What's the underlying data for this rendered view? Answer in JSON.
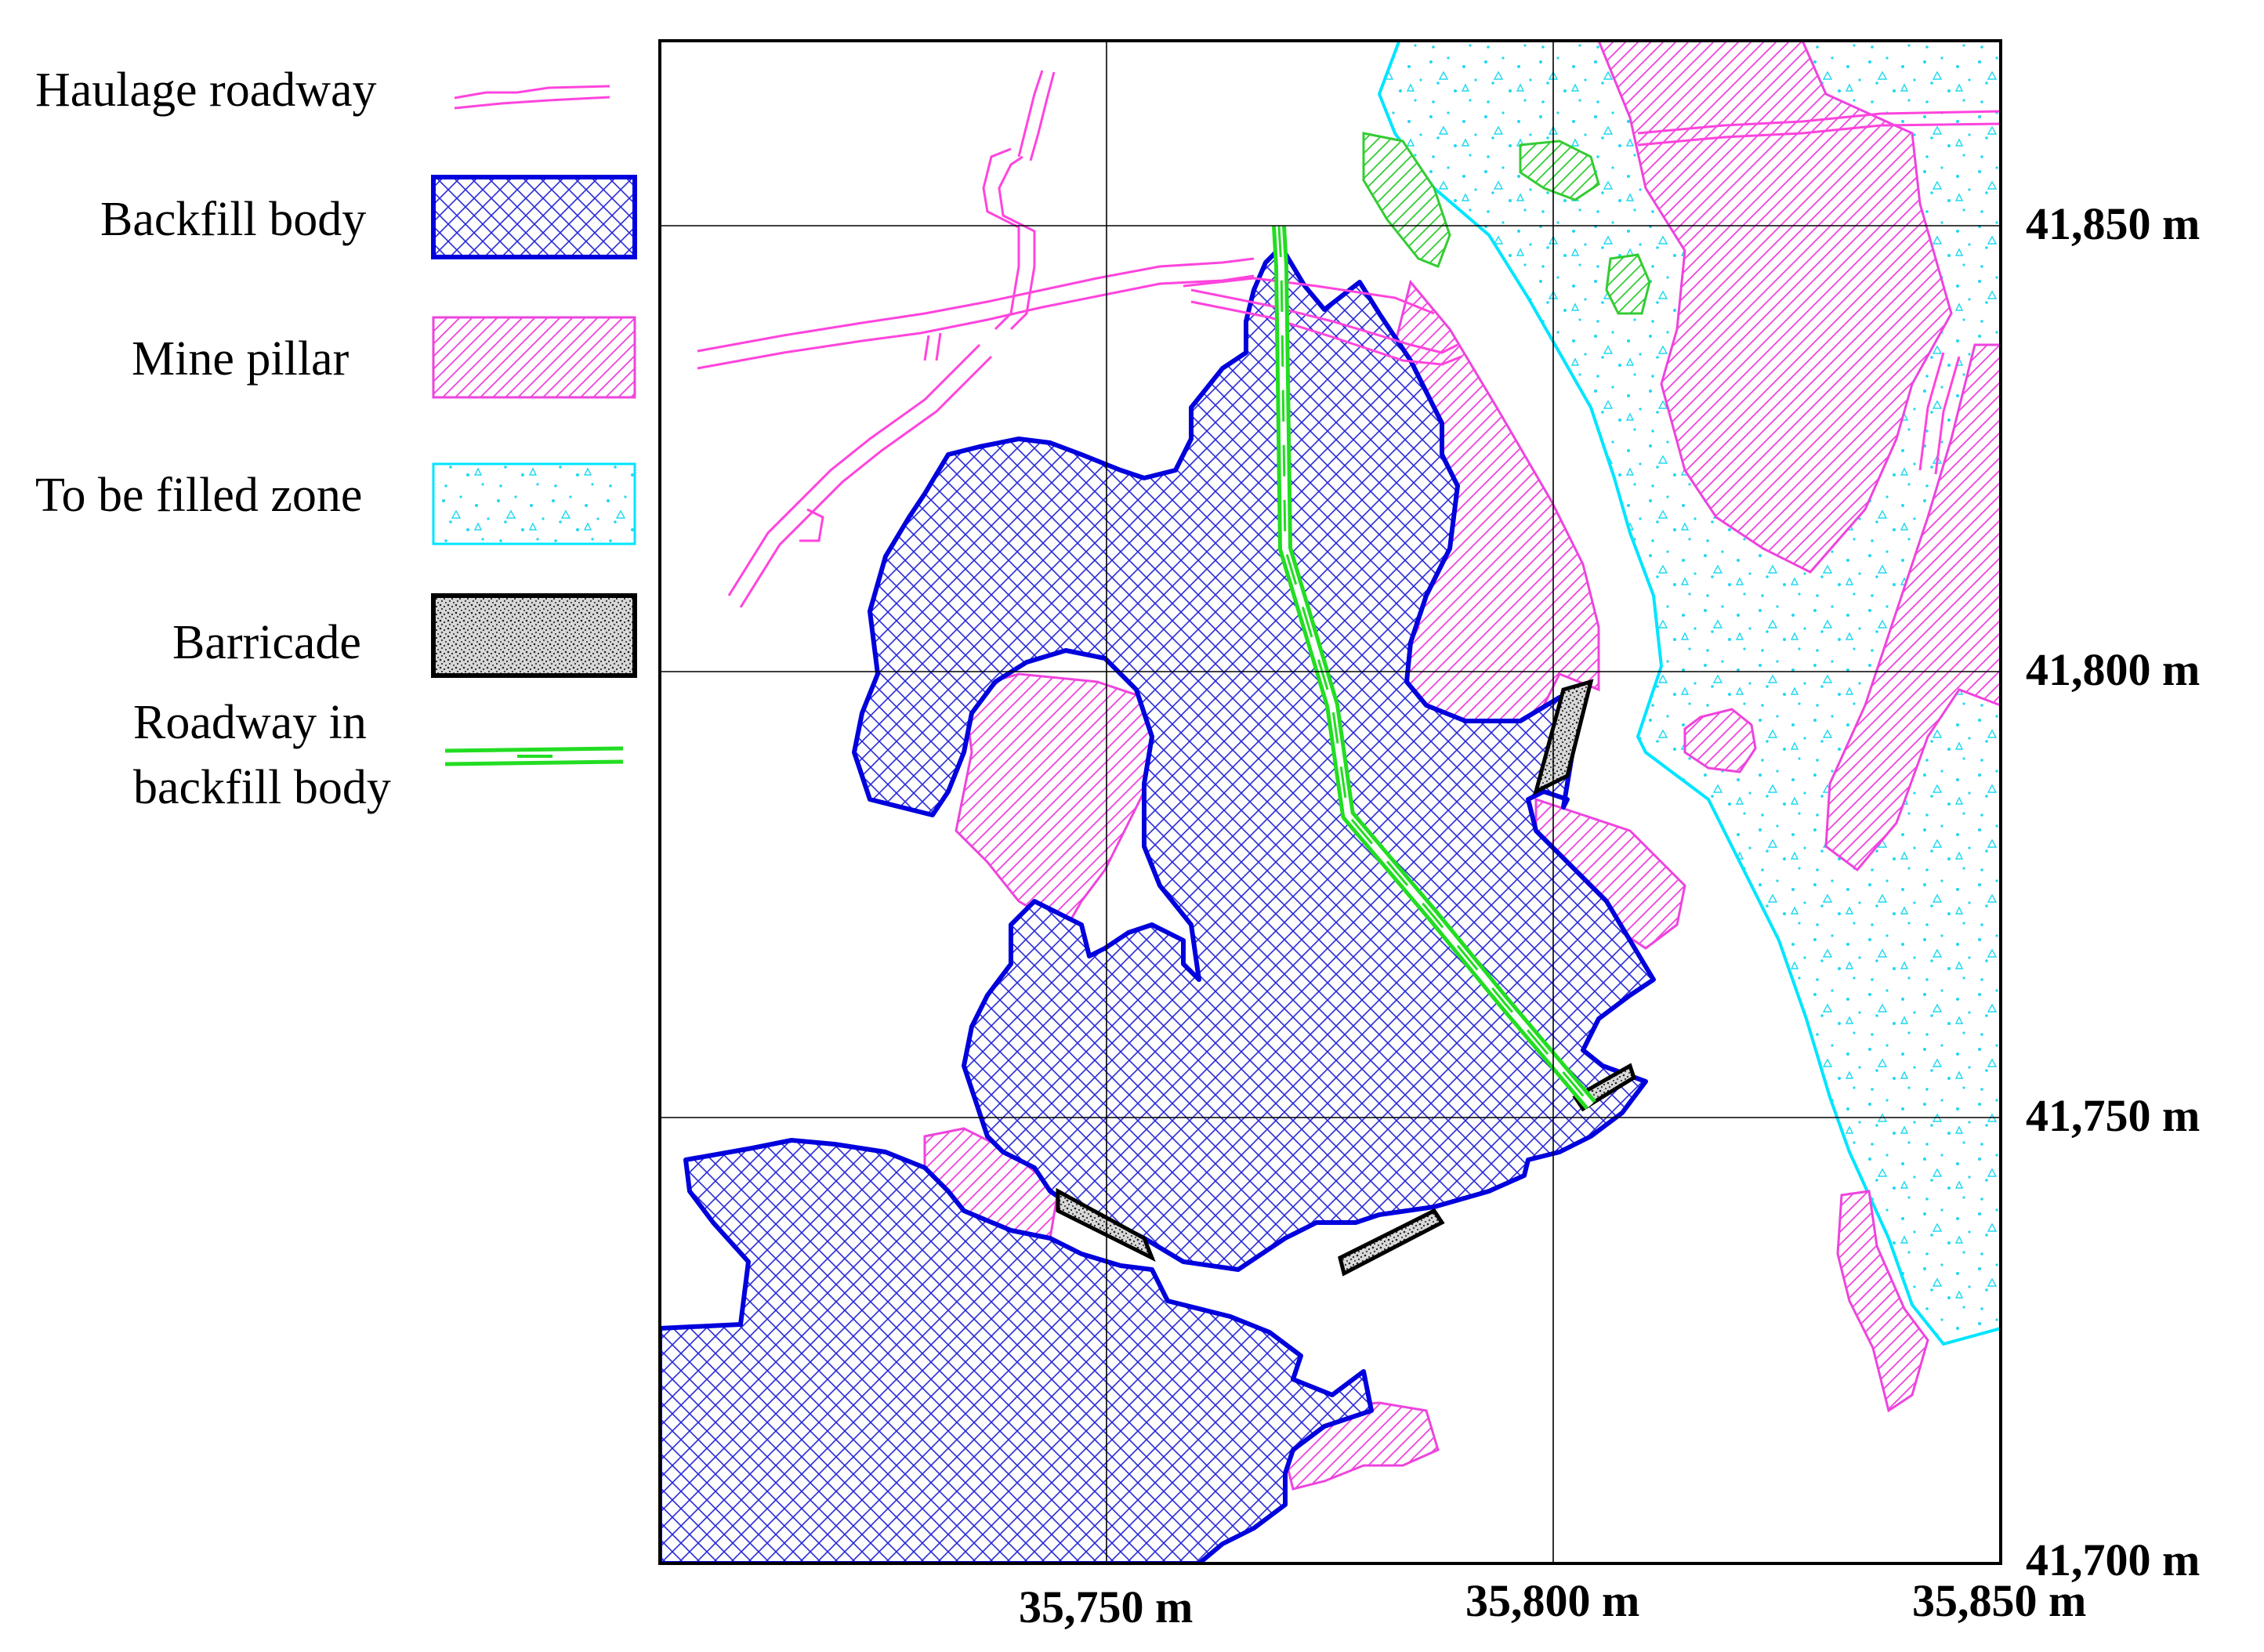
{
  "legend": {
    "haulage": "Haulage roadway",
    "backfill": "Backfill body",
    "pillar": "Mine pillar",
    "tofill": "To be filled zone",
    "barricade": "Barricade",
    "roadway_line1": "Roadway in",
    "roadway_line2": "backfill body"
  },
  "axes": {
    "x_ticks": [
      "35,750 m",
      "35,800 m",
      "35,850 m"
    ],
    "y_ticks": [
      "41,850 m",
      "41,800 m",
      "41,750 m",
      "41,700 m"
    ]
  },
  "colors": {
    "haulage": "#ff44dd",
    "backfill": "#0000dd",
    "pillar": "#ff44dd",
    "tofill": "#00e5ff",
    "barricade": "#000000",
    "roadway": "#22dd22",
    "grid": "#000000"
  }
}
